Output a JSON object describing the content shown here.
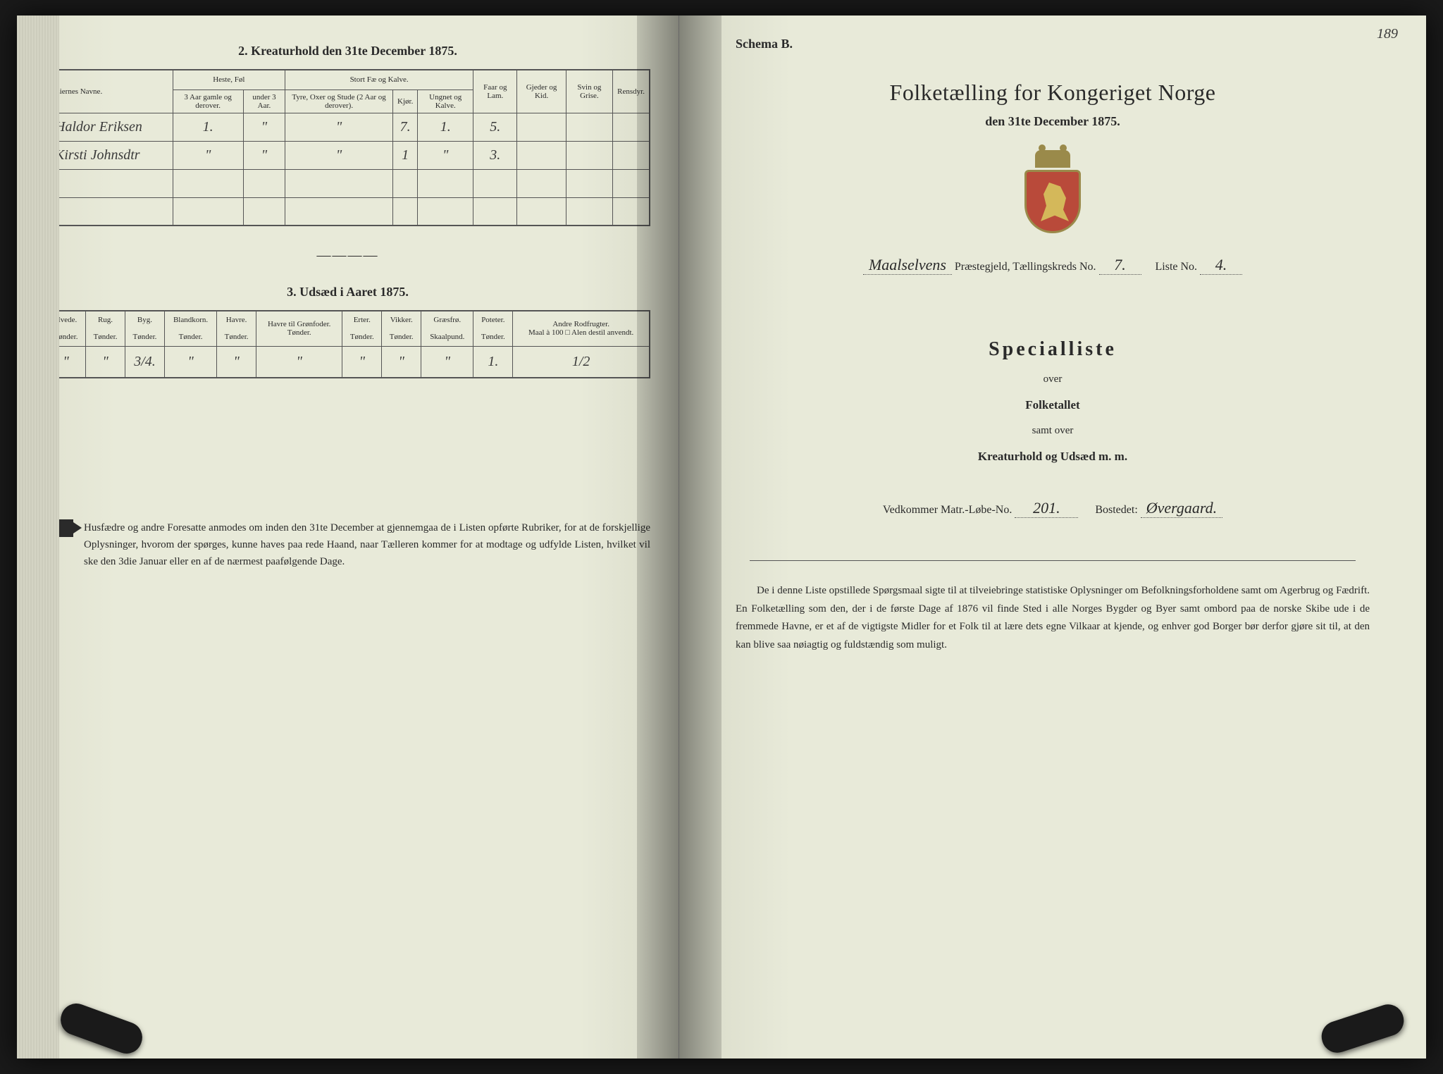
{
  "page_number": "189",
  "left_page": {
    "section2_title": "2. Kreaturhold den 31te December 1875.",
    "table2": {
      "headers": {
        "owner": "Eiernes Navne.",
        "horses": "Heste, Føl",
        "horses_sub1": "3 Aar gamle og derover.",
        "horses_sub2": "under 3 Aar.",
        "cattle": "Stort Fæ og Kalve.",
        "cattle_sub1": "Tyre, Oxer og Stude (2 Aar og derover).",
        "cattle_sub2": "Kjør.",
        "cattle_sub3": "Ungnet og Kalve.",
        "sheep": "Faar og Lam.",
        "goats": "Gjeder og Kid.",
        "pigs": "Svin og Grise.",
        "reindeer": "Rensdyr."
      },
      "rows": [
        {
          "owner": "Haldor Eriksen",
          "c1": "1.",
          "c2": "\"",
          "c3": "\"",
          "c4": "7.",
          "c5": "1.",
          "c6": "5.",
          "c7": "",
          "c8": "",
          "c9": ""
        },
        {
          "owner": "Kirsti Johnsdtr",
          "c1": "\"",
          "c2": "\"",
          "c3": "\"",
          "c4": "1",
          "c5": "\"",
          "c6": "3.",
          "c7": "",
          "c8": "",
          "c9": ""
        }
      ]
    },
    "section3_title": "3. Udsæd i Aaret 1875.",
    "table3": {
      "headers": {
        "wheat": "Hvede.",
        "rye": "Rug.",
        "barley": "Byg.",
        "mixed": "Blandkorn.",
        "oats": "Havre.",
        "oats_fodder": "Havre til Grønfoder.",
        "peas": "Erter.",
        "vetches": "Vikker.",
        "grass": "Græsfrø.",
        "potatoes": "Poteter.",
        "other": "Andre Rodfrugter.",
        "unit": "Tønder.",
        "unit_grass": "Skaalpund.",
        "unit_other": "Maal à 100 □ Alen destil anvendt."
      },
      "row": {
        "c1": "\"",
        "c2": "\"",
        "c3": "3/4.",
        "c4": "\"",
        "c5": "\"",
        "c6": "\"",
        "c7": "\"",
        "c8": "\"",
        "c9": "\"",
        "c10": "1.",
        "c11": "1/2"
      }
    },
    "footer_note": "Husfædre og andre Foresatte anmodes om inden den 31te December at gjennemgaa de i Listen opførte Rubriker, for at de forskjellige Oplysninger, hvorom der spørges, kunne haves paa rede Haand, naar Tælleren kommer for at modtage og udfylde Listen, hvilket vil ske den 3die Januar eller en af de nærmest paafølgende Dage."
  },
  "right_page": {
    "schema": "Schema B.",
    "title": "Folketælling for Kongeriget Norge",
    "subtitle": "den 31te December 1875.",
    "parish_label": "Maalselvens",
    "parish_suffix": "Præstegjeld, Tællingskreds No.",
    "kreds_no": "7.",
    "liste_label": "Liste No.",
    "liste_no": "4.",
    "specialliste": "Specialliste",
    "over": "over",
    "folketallet": "Folketallet",
    "samt_over": "samt over",
    "kreaturhold": "Kreaturhold og Udsæd m. m.",
    "matr_label": "Vedkommer Matr.-Løbe-No.",
    "matr_no": "201.",
    "bostedet_label": "Bostedet:",
    "bostedet": "Øvergaard.",
    "footer": "De i denne Liste opstillede Spørgsmaal sigte til at tilveiebringe statistiske Oplysninger om Befolkningsforholdene samt om Agerbrug og Fædrift. En Folketælling som den, der i de første Dage af 1876 vil finde Sted i alle Norges Bygder og Byer samt ombord paa de norske Skibe ude i de fremmede Havne, er et af de vigtigste Midler for et Folk til at lære dets egne Vilkaar at kjende, og enhver god Borger bør derfor gjøre sit til, at den kan blive saa nøiagtig og fuldstændig som muligt."
  }
}
